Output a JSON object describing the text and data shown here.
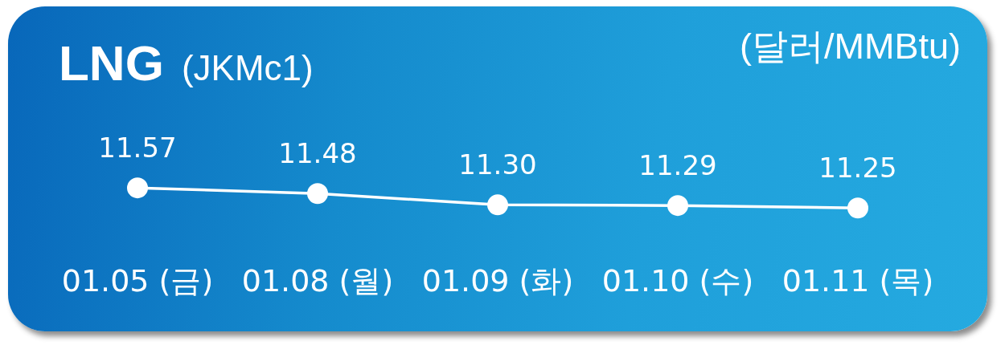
{
  "chart_data": {
    "type": "line",
    "title": "LNG",
    "subtitle": "(JKMc1)",
    "ylabel": "(달러/MMBtu)",
    "categories": [
      "01.05 (금)",
      "01.08 (월)",
      "01.09 (화)",
      "01.10 (수)",
      "01.11 (목)"
    ],
    "values": [
      11.57,
      11.48,
      11.3,
      11.29,
      11.25
    ],
    "value_labels": [
      "11.57",
      "11.48",
      "11.30",
      "11.29",
      "11.25"
    ],
    "color": "#ffffff",
    "marker": "circle",
    "line_style": "solid",
    "tick_labels": "x"
  }
}
